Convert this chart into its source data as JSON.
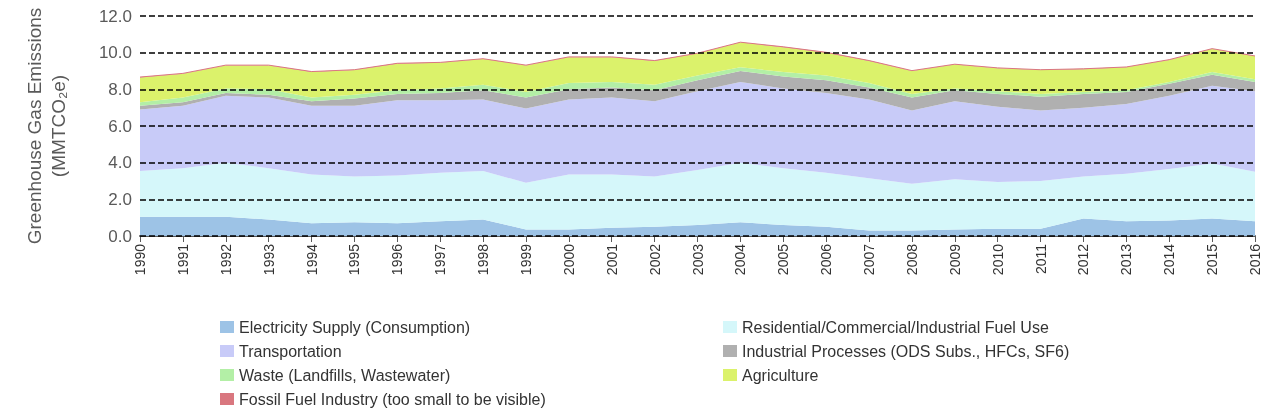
{
  "chart_data": {
    "type": "area",
    "stacked": true,
    "ylabel": "Greenhouse Gas Emissions (MMTCO₂e)",
    "categories": [
      "1990",
      "1991",
      "1992",
      "1993",
      "1994",
      "1995",
      "1996",
      "1997",
      "1998",
      "1999",
      "2000",
      "2001",
      "2002",
      "2003",
      "2004",
      "2005",
      "2006",
      "2007",
      "2008",
      "2009",
      "2010",
      "2011",
      "2012",
      "2013",
      "2014",
      "2015",
      "2016"
    ],
    "series": [
      {
        "name": "Electricity Supply (Consumption)",
        "color": "#9dc3e6",
        "values": [
          1.05,
          1.05,
          1.05,
          0.9,
          0.7,
          0.75,
          0.7,
          0.8,
          0.9,
          0.35,
          0.35,
          0.45,
          0.5,
          0.6,
          0.75,
          0.6,
          0.5,
          0.3,
          0.3,
          0.35,
          0.4,
          0.4,
          0.95,
          0.8,
          0.85,
          0.95,
          0.8
        ]
      },
      {
        "name": "Residential/Commercial/Industrial Fuel Use",
        "color": "#d5f7fa",
        "values": [
          2.5,
          2.65,
          2.95,
          2.8,
          2.65,
          2.5,
          2.6,
          2.65,
          2.65,
          2.55,
          3.0,
          2.9,
          2.75,
          3.0,
          3.25,
          3.1,
          2.95,
          2.85,
          2.55,
          2.75,
          2.55,
          2.6,
          2.3,
          2.6,
          2.8,
          3.0,
          2.7
        ]
      },
      {
        "name": "Transportation",
        "color": "#c8cbf8",
        "values": [
          3.35,
          3.4,
          3.65,
          3.85,
          3.75,
          3.85,
          4.1,
          3.95,
          3.9,
          4.05,
          4.1,
          4.2,
          4.1,
          4.3,
          4.4,
          4.35,
          4.35,
          4.3,
          4.0,
          4.25,
          4.1,
          3.85,
          3.75,
          3.8,
          4.0,
          4.25,
          4.4
        ]
      },
      {
        "name": "Industrial Processes (ODS Subs., HFCs, SF6)",
        "color": "#b0b0b0",
        "values": [
          0.2,
          0.2,
          0.15,
          0.15,
          0.25,
          0.4,
          0.35,
          0.4,
          0.5,
          0.6,
          0.55,
          0.55,
          0.6,
          0.6,
          0.6,
          0.65,
          0.7,
          0.65,
          0.7,
          0.6,
          0.7,
          0.75,
          0.75,
          0.65,
          0.65,
          0.6,
          0.5
        ]
      },
      {
        "name": "Waste (Landfills, Wastewater)",
        "color": "#b3efa6",
        "values": [
          0.2,
          0.25,
          0.25,
          0.3,
          0.2,
          0.2,
          0.2,
          0.25,
          0.3,
          0.3,
          0.35,
          0.3,
          0.3,
          0.25,
          0.2,
          0.25,
          0.25,
          0.25,
          0.2,
          0.1,
          0.15,
          0.15,
          0.1,
          0.1,
          0.1,
          0.15,
          0.15
        ]
      },
      {
        "name": "Agriculture",
        "color": "#dbf26b",
        "values": [
          1.35,
          1.3,
          1.25,
          1.3,
          1.4,
          1.35,
          1.45,
          1.4,
          1.4,
          1.45,
          1.4,
          1.35,
          1.3,
          1.2,
          1.35,
          1.35,
          1.25,
          1.2,
          1.25,
          1.3,
          1.25,
          1.3,
          1.25,
          1.25,
          1.2,
          1.25,
          1.25
        ]
      },
      {
        "name": "Fossil Fuel Industry (too small to be visible)",
        "color": "#d9777f",
        "values": [
          0.02,
          0.02,
          0.02,
          0.02,
          0.02,
          0.02,
          0.02,
          0.02,
          0.02,
          0.02,
          0.02,
          0.02,
          0.02,
          0.02,
          0.02,
          0.02,
          0.02,
          0.02,
          0.02,
          0.02,
          0.02,
          0.02,
          0.02,
          0.02,
          0.02,
          0.02,
          0.02
        ]
      }
    ],
    "ylim": [
      0,
      12
    ],
    "yticks": [
      {
        "value": 0,
        "label": "0.0"
      },
      {
        "value": 2,
        "label": "2.0"
      },
      {
        "value": 4,
        "label": "4.0"
      },
      {
        "value": 6,
        "label": "6.0"
      },
      {
        "value": 8,
        "label": "8.0"
      },
      {
        "value": 10,
        "label": "10.0"
      },
      {
        "value": 12,
        "label": "12.0"
      }
    ],
    "grid": "y",
    "line_style": "dashed",
    "legend": "bottom"
  }
}
